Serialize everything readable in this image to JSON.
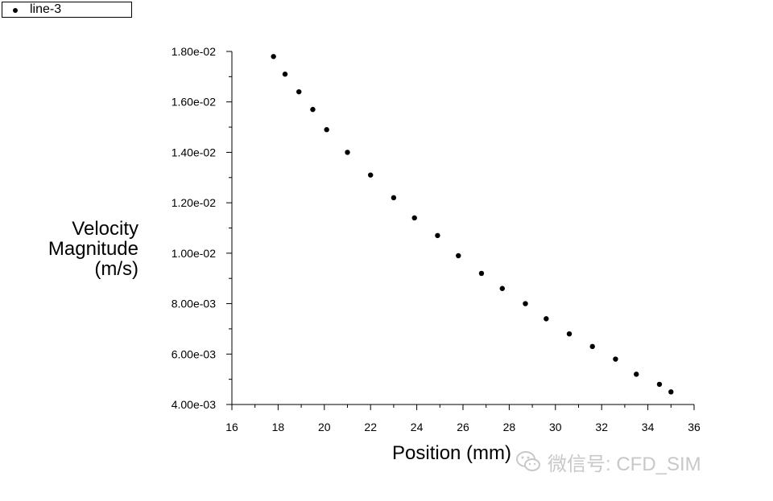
{
  "legend": {
    "label": "line-3"
  },
  "watermark": {
    "text": "微信号: CFD_SIM",
    "icon": "wechat-icon"
  },
  "colors": {
    "marker": "#000000",
    "axis": "#000000",
    "watermark": "#c8c8c8"
  },
  "chart_data": {
    "type": "scatter",
    "ylabel_lines": [
      "Velocity",
      "Magnitude",
      "(m/s)"
    ],
    "xlabel": "Position (mm)",
    "xlim": [
      16,
      36
    ],
    "ylim": [
      0.004,
      0.018
    ],
    "x_ticks": [
      "16",
      "18",
      "20",
      "22",
      "24",
      "26",
      "28",
      "30",
      "32",
      "34",
      "36"
    ],
    "y_ticks": [
      "4.00e-03",
      "6.00e-03",
      "8.00e-03",
      "1.00e-02",
      "1.20e-02",
      "1.40e-02",
      "1.60e-02",
      "1.80e-02"
    ],
    "grid": false,
    "legend_position": "top-left",
    "series": [
      {
        "name": "line-3",
        "x": [
          17.8,
          18.3,
          18.9,
          19.5,
          20.1,
          21.0,
          22.0,
          23.0,
          23.9,
          24.9,
          25.8,
          26.8,
          27.7,
          28.7,
          29.6,
          30.6,
          31.6,
          32.6,
          33.5,
          34.5,
          35.0
        ],
        "y": [
          0.0178,
          0.0171,
          0.0164,
          0.0157,
          0.0149,
          0.014,
          0.0131,
          0.0122,
          0.0114,
          0.0107,
          0.0099,
          0.0092,
          0.0086,
          0.008,
          0.0074,
          0.0068,
          0.0063,
          0.0058,
          0.0052,
          0.0048,
          0.0045
        ]
      }
    ]
  }
}
